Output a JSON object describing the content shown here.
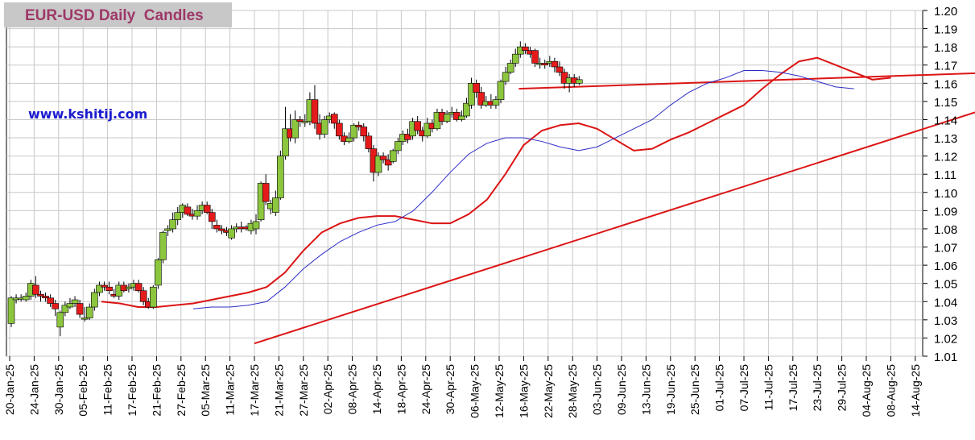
{
  "header": {
    "title": "EUR-USD Daily  Candles",
    "website": "www.kshitij.com"
  },
  "chart_data": {
    "type": "candlestick",
    "title": "EUR-USD Daily  Candles",
    "ylim": [
      1.01,
      1.2
    ],
    "y_ticks": [
      "1.01",
      "1.02",
      "1.03",
      "1.04",
      "1.05",
      "1.06",
      "1.07",
      "1.08",
      "1.09",
      "1.10",
      "1.11",
      "1.12",
      "1.13",
      "1.14",
      "1.15",
      "1.16",
      "1.17",
      "1.18",
      "1.19",
      "1.20"
    ],
    "x_tick_labels": [
      "20-Jan-25",
      "24-Jan-25",
      "30-Jan-25",
      "05-Feb-25",
      "11-Feb-25",
      "17-Feb-25",
      "21-Feb-25",
      "27-Feb-25",
      "05-Mar-25",
      "11-Mar-25",
      "17-Mar-25",
      "21-Mar-25",
      "27-Mar-25",
      "02-Apr-25",
      "08-Apr-25",
      "14-Apr-25",
      "18-Apr-25",
      "24-Apr-25",
      "30-Apr-25",
      "06-May-25",
      "12-May-25",
      "16-May-25",
      "22-May-25",
      "28-May-25",
      "03-Jun-25",
      "09-Jun-25",
      "13-Jun-25",
      "19-Jun-25",
      "25-Jun-25",
      "01-Jul-25",
      "07-Jul-25",
      "11-Jul-25",
      "17-Jul-25",
      "23-Jul-25",
      "29-Jul-25",
      "04-Aug-25",
      "08-Aug-25",
      "14-Aug-25"
    ],
    "candles": [
      [
        1.028,
        1.042,
        1.043,
        1.026
      ],
      [
        1.041,
        1.042,
        1.044,
        1.039
      ],
      [
        1.042,
        1.042,
        1.044,
        1.04
      ],
      [
        1.041,
        1.043,
        1.045,
        1.04
      ],
      [
        1.043,
        1.05,
        1.052,
        1.041
      ],
      [
        1.049,
        1.044,
        1.054,
        1.042
      ],
      [
        1.044,
        1.043,
        1.046,
        1.04
      ],
      [
        1.043,
        1.042,
        1.045,
        1.04
      ],
      [
        1.042,
        1.039,
        1.044,
        1.037
      ],
      [
        1.039,
        1.036,
        1.041,
        1.032
      ],
      [
        1.026,
        1.034,
        1.035,
        1.021
      ],
      [
        1.034,
        1.038,
        1.04,
        1.032
      ],
      [
        1.037,
        1.039,
        1.042,
        1.036
      ],
      [
        1.039,
        1.041,
        1.043,
        1.037
      ],
      [
        1.039,
        1.033,
        1.041,
        1.031
      ],
      [
        1.031,
        1.031,
        1.037,
        1.029
      ],
      [
        1.031,
        1.037,
        1.039,
        1.03
      ],
      [
        1.037,
        1.045,
        1.047,
        1.035
      ],
      [
        1.045,
        1.049,
        1.051,
        1.043
      ],
      [
        1.049,
        1.048,
        1.051,
        1.046
      ],
      [
        1.048,
        1.046,
        1.051,
        1.044
      ],
      [
        1.044,
        1.043,
        1.047,
        1.042
      ],
      [
        1.043,
        1.049,
        1.051,
        1.041
      ],
      [
        1.049,
        1.046,
        1.051,
        1.045
      ],
      [
        1.047,
        1.048,
        1.05,
        1.045
      ],
      [
        1.048,
        1.05,
        1.052,
        1.046
      ],
      [
        1.05,
        1.046,
        1.052,
        1.045
      ],
      [
        1.046,
        1.04,
        1.048,
        1.038
      ],
      [
        1.04,
        1.037,
        1.042,
        1.036
      ],
      [
        1.037,
        1.048,
        1.049,
        1.036
      ],
      [
        1.049,
        1.063,
        1.064,
        1.047
      ],
      [
        1.063,
        1.078,
        1.079,
        1.061
      ],
      [
        1.079,
        1.08,
        1.082,
        1.076
      ],
      [
        1.08,
        1.085,
        1.089,
        1.078
      ],
      [
        1.085,
        1.089,
        1.092,
        1.082
      ],
      [
        1.089,
        1.093,
        1.094,
        1.086
      ],
      [
        1.092,
        1.088,
        1.094,
        1.087
      ],
      [
        1.088,
        1.087,
        1.091,
        1.085
      ],
      [
        1.087,
        1.09,
        1.093,
        1.085
      ],
      [
        1.09,
        1.093,
        1.095,
        1.088
      ],
      [
        1.093,
        1.089,
        1.095,
        1.088
      ],
      [
        1.089,
        1.084,
        1.091,
        1.08
      ],
      [
        1.082,
        1.08,
        1.085,
        1.078
      ],
      [
        1.08,
        1.079,
        1.082,
        1.077
      ],
      [
        1.079,
        1.078,
        1.081,
        1.076
      ],
      [
        1.075,
        1.08,
        1.082,
        1.074
      ],
      [
        1.08,
        1.081,
        1.083,
        1.078
      ],
      [
        1.081,
        1.08,
        1.084,
        1.078
      ],
      [
        1.081,
        1.08,
        1.082,
        1.079
      ],
      [
        1.079,
        1.083,
        1.085,
        1.077
      ],
      [
        1.08,
        1.084,
        1.088,
        1.077
      ],
      [
        1.085,
        1.105,
        1.106,
        1.084
      ],
      [
        1.105,
        1.095,
        1.11,
        1.093
      ],
      [
        1.091,
        1.094,
        1.096,
        1.088
      ],
      [
        1.089,
        1.097,
        1.101,
        1.087
      ],
      [
        1.097,
        1.12,
        1.123,
        1.096
      ],
      [
        1.12,
        1.135,
        1.147,
        1.118
      ],
      [
        1.135,
        1.13,
        1.143,
        1.128
      ],
      [
        1.13,
        1.14,
        1.145,
        1.127
      ],
      [
        1.14,
        1.139,
        1.142,
        1.136
      ],
      [
        1.139,
        1.139,
        1.143,
        1.136
      ],
      [
        1.139,
        1.151,
        1.155,
        1.137
      ],
      [
        1.151,
        1.138,
        1.159,
        1.135
      ],
      [
        1.138,
        1.132,
        1.143,
        1.129
      ],
      [
        1.132,
        1.14,
        1.142,
        1.13
      ],
      [
        1.14,
        1.142,
        1.144,
        1.138
      ],
      [
        1.143,
        1.138,
        1.144,
        1.135
      ],
      [
        1.138,
        1.131,
        1.14,
        1.129
      ],
      [
        1.131,
        1.128,
        1.133,
        1.126
      ],
      [
        1.128,
        1.13,
        1.133,
        1.127
      ],
      [
        1.13,
        1.137,
        1.138,
        1.128
      ],
      [
        1.137,
        1.136,
        1.139,
        1.134
      ],
      [
        1.136,
        1.131,
        1.138,
        1.128
      ],
      [
        1.131,
        1.124,
        1.133,
        1.122
      ],
      [
        1.124,
        1.111,
        1.126,
        1.106
      ],
      [
        1.111,
        1.12,
        1.122,
        1.109
      ],
      [
        1.12,
        1.118,
        1.122,
        1.116
      ],
      [
        1.118,
        1.115,
        1.121,
        1.112
      ],
      [
        1.117,
        1.123,
        1.124,
        1.116
      ],
      [
        1.123,
        1.128,
        1.13,
        1.121
      ],
      [
        1.128,
        1.132,
        1.134,
        1.126
      ],
      [
        1.132,
        1.129,
        1.135,
        1.127
      ],
      [
        1.131,
        1.139,
        1.141,
        1.129
      ],
      [
        1.139,
        1.134,
        1.142,
        1.132
      ],
      [
        1.134,
        1.131,
        1.136,
        1.128
      ],
      [
        1.131,
        1.138,
        1.141,
        1.13
      ],
      [
        1.138,
        1.135,
        1.14,
        1.133
      ],
      [
        1.135,
        1.144,
        1.146,
        1.134
      ],
      [
        1.144,
        1.139,
        1.146,
        1.137
      ],
      [
        1.139,
        1.143,
        1.145,
        1.138
      ],
      [
        1.143,
        1.144,
        1.147,
        1.141
      ],
      [
        1.144,
        1.14,
        1.146,
        1.139
      ],
      [
        1.14,
        1.142,
        1.145,
        1.139
      ],
      [
        1.142,
        1.149,
        1.152,
        1.141
      ],
      [
        1.148,
        1.16,
        1.163,
        1.146
      ],
      [
        1.16,
        1.155,
        1.162,
        1.152
      ],
      [
        1.155,
        1.148,
        1.158,
        1.146
      ],
      [
        1.148,
        1.15,
        1.153,
        1.147
      ],
      [
        1.15,
        1.148,
        1.154,
        1.146
      ],
      [
        1.148,
        1.151,
        1.153,
        1.146
      ],
      [
        1.151,
        1.161,
        1.162,
        1.149
      ],
      [
        1.161,
        1.166,
        1.169,
        1.159
      ],
      [
        1.166,
        1.171,
        1.173,
        1.165
      ],
      [
        1.171,
        1.176,
        1.179,
        1.169
      ],
      [
        1.176,
        1.18,
        1.183,
        1.174
      ],
      [
        1.18,
        1.178,
        1.182,
        1.176
      ],
      [
        1.178,
        1.176,
        1.18,
        1.174
      ],
      [
        1.178,
        1.171,
        1.179,
        1.169
      ],
      [
        1.171,
        1.171,
        1.174,
        1.168
      ],
      [
        1.171,
        1.17,
        1.173,
        1.168
      ],
      [
        1.171,
        1.172,
        1.175,
        1.169
      ],
      [
        1.172,
        1.169,
        1.174,
        1.166
      ],
      [
        1.169,
        1.166,
        1.172,
        1.164
      ],
      [
        1.166,
        1.16,
        1.168,
        1.157
      ],
      [
        1.16,
        1.163,
        1.165,
        1.155
      ],
      [
        1.163,
        1.16,
        1.165,
        1.158
      ],
      [
        1.16,
        1.162,
        1.164,
        1.159
      ]
    ],
    "series": [
      {
        "color": "#dc1414",
        "values": [
          [
            5,
            1.04
          ],
          [
            6,
            1.039
          ],
          [
            7,
            1.037
          ],
          [
            8,
            1.037
          ],
          [
            9,
            1.038
          ],
          [
            10,
            1.039
          ],
          [
            11,
            1.041
          ],
          [
            12,
            1.043
          ],
          [
            13,
            1.045
          ],
          [
            14,
            1.048
          ],
          [
            15,
            1.056
          ],
          [
            16,
            1.068
          ],
          [
            17,
            1.078
          ],
          [
            18,
            1.083
          ],
          [
            19,
            1.086
          ],
          [
            20,
            1.087
          ],
          [
            21,
            1.087
          ],
          [
            22,
            1.085
          ],
          [
            23,
            1.083
          ],
          [
            24,
            1.083
          ],
          [
            25,
            1.088
          ],
          [
            26,
            1.096
          ],
          [
            27,
            1.11
          ],
          [
            28,
            1.126
          ],
          [
            29,
            1.134
          ],
          [
            30,
            1.137
          ],
          [
            31,
            1.138
          ],
          [
            32,
            1.135
          ],
          [
            33,
            1.129
          ],
          [
            34,
            1.123
          ],
          [
            35,
            1.124
          ],
          [
            36,
            1.129
          ],
          [
            37,
            1.133
          ],
          [
            38,
            1.138
          ],
          [
            39,
            1.143
          ],
          [
            40,
            1.148
          ],
          [
            41,
            1.157
          ],
          [
            42,
            1.165
          ],
          [
            43,
            1.172
          ],
          [
            44,
            1.174
          ],
          [
            45,
            1.17
          ],
          [
            46,
            1.166
          ],
          [
            47,
            1.162
          ],
          [
            48,
            1.163
          ]
        ]
      },
      {
        "color": "#2c2cc6",
        "values": [
          [
            10,
            1.036
          ],
          [
            11,
            1.037
          ],
          [
            12,
            1.037
          ],
          [
            13,
            1.038
          ],
          [
            14,
            1.04
          ],
          [
            15,
            1.048
          ],
          [
            16,
            1.058
          ],
          [
            17,
            1.066
          ],
          [
            18,
            1.073
          ],
          [
            19,
            1.078
          ],
          [
            20,
            1.082
          ],
          [
            21,
            1.084
          ],
          [
            22,
            1.09
          ],
          [
            23,
            1.1
          ],
          [
            24,
            1.111
          ],
          [
            25,
            1.121
          ],
          [
            26,
            1.127
          ],
          [
            27,
            1.13
          ],
          [
            28,
            1.13
          ],
          [
            29,
            1.128
          ],
          [
            30,
            1.125
          ],
          [
            31,
            1.123
          ],
          [
            32,
            1.125
          ],
          [
            33,
            1.13
          ],
          [
            34,
            1.135
          ],
          [
            35,
            1.14
          ],
          [
            36,
            1.148
          ],
          [
            37,
            1.155
          ],
          [
            38,
            1.16
          ],
          [
            39,
            1.163
          ],
          [
            40,
            1.167
          ],
          [
            41,
            1.167
          ],
          [
            42,
            1.166
          ],
          [
            43,
            1.164
          ],
          [
            44,
            1.161
          ],
          [
            45,
            1.158
          ],
          [
            46,
            1.157
          ]
        ]
      }
    ],
    "trendlines": [
      {
        "color": "#dc1414",
        "from": [
          10,
          1.017
        ],
        "to": [
          51.5,
          1.196
        ]
      },
      {
        "color": "#dc1414",
        "from": [
          20.8,
          1.157
        ],
        "to": [
          51.5,
          1.171
        ]
      }
    ]
  }
}
